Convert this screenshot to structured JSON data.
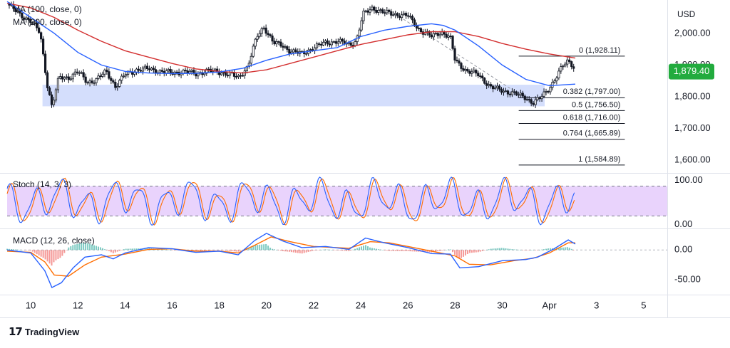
{
  "chart_data": {
    "type": "line",
    "instrument_kind": "candlestick",
    "currency": "USD",
    "last_price": "1,879.40",
    "last_price_value": 1879.4,
    "colors": {
      "up": "#26a69a",
      "down": "#131722",
      "candle": "#131722",
      "ma100": "#2962ff",
      "ma200": "#d32f2f",
      "support_zone": "#c5d3fb",
      "stoch_band": "#e1c4fb",
      "stoch_k": "#2962ff",
      "stoch_d": "#ff6d00",
      "macd_line": "#2962ff",
      "signal_line": "#ff6d00",
      "hist_pos": "#26a69a",
      "hist_neg": "#ef5350",
      "price_tag": "#22ab3e"
    },
    "x_axis": {
      "ticks": [
        "10",
        "12",
        "14",
        "16",
        "18",
        "20",
        "22",
        "24",
        "26",
        "28",
        "30",
        "Apr",
        "3",
        "5"
      ],
      "tick_days": [
        10,
        12,
        14,
        16,
        18,
        20,
        22,
        24,
        26,
        28,
        30,
        32,
        34,
        36
      ],
      "range_days": [
        9,
        37
      ]
    },
    "price_panel": {
      "y_ticks": [
        "2,000.00",
        "1,900.00",
        "1,800.00",
        "1,700.00",
        "1,600.00"
      ],
      "y_tick_values": [
        2000,
        1900,
        1800,
        1700,
        1600
      ],
      "ylim": [
        1560,
        2105
      ],
      "overlays": [
        {
          "name": "MA (100, close, 0)",
          "color": "#2962ff"
        },
        {
          "name": "MA (200, close, 0)",
          "color": "#d32f2f"
        }
      ],
      "support_zone": {
        "from_day": 10.5,
        "to_day": 31.8,
        "low": 1770,
        "high": 1838
      },
      "fib_levels": [
        {
          "label": "0 (1,928.11)",
          "value": 1928.11
        },
        {
          "label": "0.382 (1,797.00)",
          "value": 1797.0
        },
        {
          "label": "0.5 (1,756.50)",
          "value": 1756.5
        },
        {
          "label": "0.618 (1,716.00)",
          "value": 1716.0
        },
        {
          "label": "0.764 (1,665.89)",
          "value": 1665.89
        },
        {
          "label": "1 (1,584.89)",
          "value": 1584.89
        }
      ],
      "fib_span_days": [
        30.7,
        35.2
      ],
      "close_path": [
        [
          9.0,
          2095
        ],
        [
          9.5,
          2060
        ],
        [
          10.0,
          2040
        ],
        [
          10.4,
          2000
        ],
        [
          10.7,
          1840
        ],
        [
          10.9,
          1770
        ],
        [
          11.2,
          1860
        ],
        [
          11.6,
          1860
        ],
        [
          12.0,
          1880
        ],
        [
          12.4,
          1845
        ],
        [
          12.8,
          1855
        ],
        [
          13.2,
          1880
        ],
        [
          13.6,
          1832
        ],
        [
          14.0,
          1870
        ],
        [
          14.5,
          1885
        ],
        [
          15.0,
          1888
        ],
        [
          15.5,
          1880
        ],
        [
          16.0,
          1875
        ],
        [
          16.5,
          1880
        ],
        [
          17.0,
          1872
        ],
        [
          17.5,
          1882
        ],
        [
          18.0,
          1878
        ],
        [
          18.5,
          1870
        ],
        [
          18.8,
          1860
        ],
        [
          19.2,
          1895
        ],
        [
          19.6,
          1990
        ],
        [
          19.9,
          2020
        ],
        [
          20.3,
          1970
        ],
        [
          20.7,
          1960
        ],
        [
          21.0,
          1945
        ],
        [
          21.5,
          1935
        ],
        [
          22.0,
          1955
        ],
        [
          22.5,
          1970
        ],
        [
          23.0,
          1975
        ],
        [
          23.5,
          1965
        ],
        [
          23.8,
          1975
        ],
        [
          24.1,
          2060
        ],
        [
          24.5,
          2080
        ],
        [
          25.0,
          2065
        ],
        [
          25.5,
          2060
        ],
        [
          26.0,
          2055
        ],
        [
          26.5,
          2010
        ],
        [
          27.0,
          1990
        ],
        [
          27.4,
          2005
        ],
        [
          27.8,
          1985
        ],
        [
          28.0,
          1915
        ],
        [
          28.5,
          1880
        ],
        [
          29.0,
          1870
        ],
        [
          29.5,
          1830
        ],
        [
          30.0,
          1820
        ],
        [
          30.5,
          1810
        ],
        [
          31.0,
          1798
        ],
        [
          31.3,
          1780
        ],
        [
          31.6,
          1795
        ],
        [
          31.9,
          1820
        ],
        [
          32.2,
          1850
        ],
        [
          32.6,
          1900
        ],
        [
          32.8,
          1915
        ],
        [
          33.0,
          1900
        ],
        [
          33.1,
          1880
        ]
      ],
      "ma100_path": [
        [
          9.0,
          2100
        ],
        [
          10.0,
          2050
        ],
        [
          11.0,
          2000
        ],
        [
          12.0,
          1940
        ],
        [
          13.0,
          1900
        ],
        [
          14.0,
          1880
        ],
        [
          15.0,
          1875
        ],
        [
          16.0,
          1873
        ],
        [
          17.0,
          1874
        ],
        [
          18.0,
          1878
        ],
        [
          19.0,
          1890
        ],
        [
          20.0,
          1915
        ],
        [
          21.0,
          1935
        ],
        [
          22.0,
          1945
        ],
        [
          23.0,
          1955
        ],
        [
          24.0,
          1990
        ],
        [
          25.0,
          2010
        ],
        [
          26.0,
          2022
        ],
        [
          27.0,
          2030
        ],
        [
          27.5,
          2025
        ],
        [
          28.0,
          2010
        ],
        [
          29.0,
          1960
        ],
        [
          30.0,
          1900
        ],
        [
          31.0,
          1855
        ],
        [
          32.0,
          1835
        ],
        [
          33.1,
          1840
        ]
      ],
      "ma200_path": [
        [
          9.0,
          2095
        ],
        [
          10.0,
          2080
        ],
        [
          11.0,
          2050
        ],
        [
          12.0,
          2010
        ],
        [
          13.0,
          1975
        ],
        [
          14.0,
          1945
        ],
        [
          15.0,
          1925
        ],
        [
          16.0,
          1905
        ],
        [
          17.0,
          1888
        ],
        [
          18.0,
          1880
        ],
        [
          19.0,
          1875
        ],
        [
          20.0,
          1885
        ],
        [
          21.0,
          1905
        ],
        [
          22.0,
          1925
        ],
        [
          23.0,
          1945
        ],
        [
          24.0,
          1965
        ],
        [
          25.0,
          1980
        ],
        [
          26.0,
          1995
        ],
        [
          27.0,
          2005
        ],
        [
          28.0,
          2005
        ],
        [
          29.0,
          1990
        ],
        [
          30.0,
          1968
        ],
        [
          31.0,
          1950
        ],
        [
          32.0,
          1935
        ],
        [
          33.1,
          1922
        ]
      ],
      "trend_line": [
        [
          25.8,
          2045
        ],
        [
          31.3,
          1780
        ]
      ]
    },
    "stoch_panel": {
      "label": "Stoch (14, 3, 3)",
      "y_ticks": [
        "100.00",
        "0.00"
      ],
      "y_tick_values": [
        100,
        0
      ],
      "ylim": [
        -5,
        105
      ],
      "band": [
        20,
        80
      ]
    },
    "macd_panel": {
      "label": "MACD (12, 26, close)",
      "y_ticks": [
        "0.00",
        "-50.00"
      ],
      "y_tick_values": [
        0,
        -50
      ],
      "ylim": [
        -75,
        35
      ],
      "macd_path": [
        [
          9.0,
          0
        ],
        [
          10.0,
          -5
        ],
        [
          10.6,
          -35
        ],
        [
          10.9,
          -63
        ],
        [
          11.3,
          -55
        ],
        [
          11.8,
          -30
        ],
        [
          12.3,
          -12
        ],
        [
          13.0,
          -8
        ],
        [
          13.5,
          -15
        ],
        [
          14.0,
          -5
        ],
        [
          15.0,
          4
        ],
        [
          16.0,
          2
        ],
        [
          17.0,
          -4
        ],
        [
          18.0,
          -2
        ],
        [
          18.8,
          -8
        ],
        [
          19.5,
          16
        ],
        [
          20.0,
          28
        ],
        [
          20.7,
          15
        ],
        [
          21.5,
          4
        ],
        [
          22.5,
          6
        ],
        [
          23.5,
          1
        ],
        [
          24.2,
          20
        ],
        [
          25.0,
          12
        ],
        [
          26.0,
          4
        ],
        [
          27.0,
          -6
        ],
        [
          27.8,
          -7
        ],
        [
          28.2,
          -30
        ],
        [
          29.0,
          -28
        ],
        [
          30.0,
          -18
        ],
        [
          31.0,
          -16
        ],
        [
          31.5,
          -12
        ],
        [
          32.2,
          2
        ],
        [
          32.8,
          17
        ],
        [
          33.1,
          10
        ]
      ],
      "signal_path": [
        [
          9.0,
          -2
        ],
        [
          10.0,
          -4
        ],
        [
          10.6,
          -20
        ],
        [
          11.0,
          -42
        ],
        [
          11.6,
          -44
        ],
        [
          12.3,
          -25
        ],
        [
          13.0,
          -12
        ],
        [
          14.0,
          -7
        ],
        [
          15.0,
          1
        ],
        [
          16.0,
          2
        ],
        [
          17.0,
          -2
        ],
        [
          18.0,
          -2
        ],
        [
          18.8,
          -5
        ],
        [
          19.5,
          8
        ],
        [
          20.2,
          22
        ],
        [
          21.0,
          14
        ],
        [
          22.0,
          6
        ],
        [
          23.5,
          3
        ],
        [
          24.4,
          14
        ],
        [
          25.2,
          12
        ],
        [
          26.0,
          6
        ],
        [
          27.0,
          -2
        ],
        [
          28.0,
          -10
        ],
        [
          28.6,
          -24
        ],
        [
          29.5,
          -25
        ],
        [
          30.5,
          -18
        ],
        [
          31.3,
          -14
        ],
        [
          32.0,
          -5
        ],
        [
          32.8,
          12
        ],
        [
          33.1,
          12
        ]
      ]
    }
  }
}
